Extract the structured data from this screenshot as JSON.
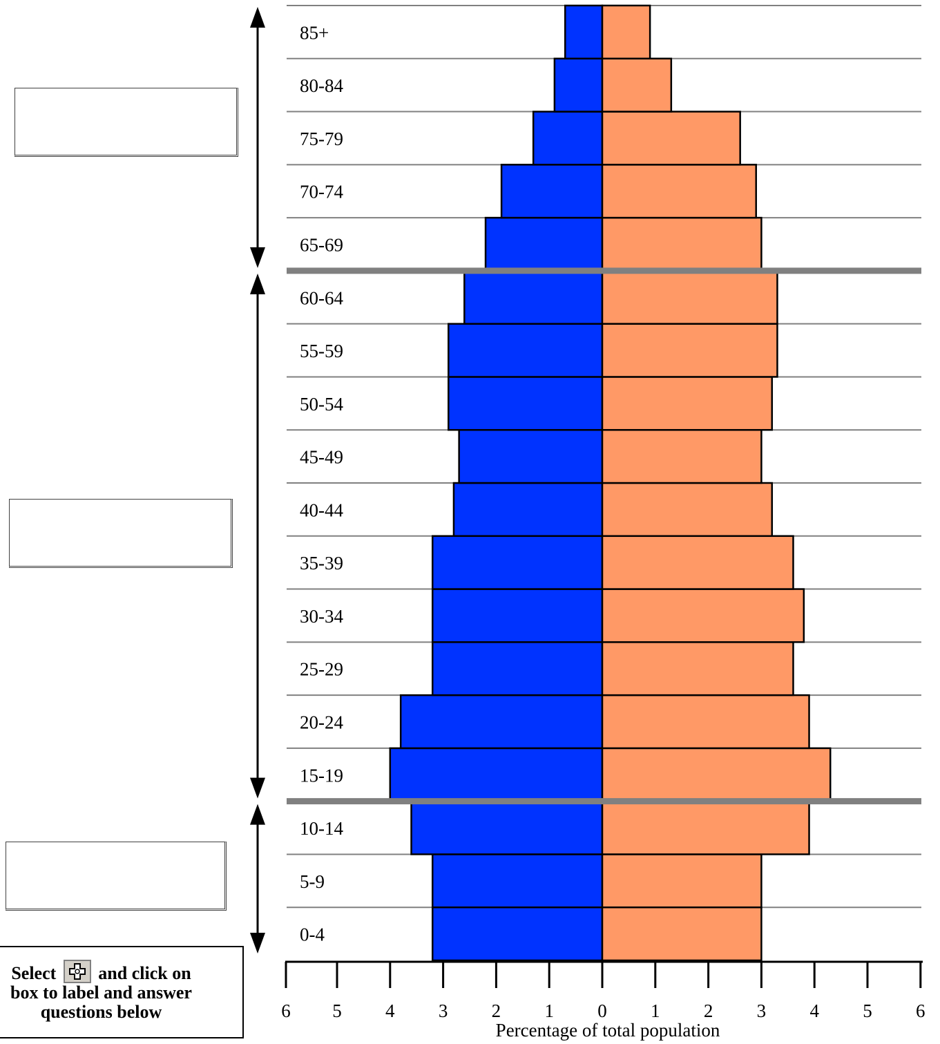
{
  "chart_data": {
    "type": "bar",
    "orientation": "horizontal-population-pyramid",
    "categories": [
      "0-4",
      "5-9",
      "10-14",
      "15-19",
      "20-24",
      "25-29",
      "30-34",
      "35-39",
      "40-44",
      "45-49",
      "50-54",
      "55-59",
      "60-64",
      "65-69",
      "70-74",
      "75-79",
      "80-84",
      "85+"
    ],
    "series": [
      {
        "side": "left",
        "color": "#0033ff",
        "values": [
          3.2,
          3.2,
          3.6,
          4.0,
          3.8,
          3.2,
          3.2,
          3.2,
          2.8,
          2.7,
          2.9,
          2.9,
          2.6,
          2.2,
          1.9,
          1.3,
          0.9,
          0.7
        ]
      },
      {
        "side": "right",
        "color": "#ff9966",
        "values": [
          3.0,
          3.0,
          3.9,
          4.3,
          3.9,
          3.6,
          3.8,
          3.6,
          3.2,
          3.0,
          3.2,
          3.3,
          3.3,
          3.0,
          2.9,
          2.6,
          1.3,
          0.9
        ]
      }
    ],
    "x_ticks_left": [
      "6",
      "5",
      "4",
      "3",
      "2",
      "1"
    ],
    "x_ticks_right": [
      "0",
      "1",
      "2",
      "3",
      "4",
      "5",
      "6"
    ],
    "xlim": [
      0,
      6
    ],
    "xlabel": "Percentage of total population",
    "group_dividers_after": [
      "10-14",
      "60-64"
    ],
    "grid": true
  },
  "instructions": {
    "line1_before": "Select",
    "line1_after": "and click on",
    "line2": "box to label and answer",
    "line3": "questions below",
    "icon": "move-tool-icon"
  }
}
